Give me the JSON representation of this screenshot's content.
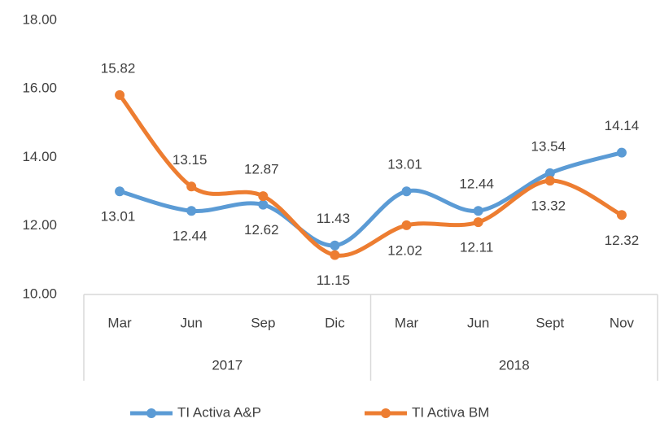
{
  "chart_data": {
    "type": "line",
    "categories": [
      "Mar",
      "Jun",
      "Sep",
      "Dic",
      "Mar",
      "Jun",
      "Sept",
      "Nov"
    ],
    "group_labels": [
      "2017",
      "2018"
    ],
    "series": [
      {
        "name": "TI Activa A&P",
        "color": "#5b9bd5",
        "values": [
          13.01,
          12.44,
          12.62,
          11.43,
          13.01,
          12.44,
          13.54,
          14.14
        ]
      },
      {
        "name": "TI Activa BM",
        "color": "#ed7d31",
        "values": [
          15.82,
          13.15,
          12.87,
          11.15,
          12.02,
          12.11,
          13.32,
          12.32
        ]
      }
    ],
    "ylim": [
      10,
      18
    ],
    "yticks": [
      {
        "value": 10,
        "label": "10.00"
      },
      {
        "value": 12,
        "label": "12.00"
      },
      {
        "value": 14,
        "label": "14.00"
      },
      {
        "value": 16,
        "label": "16.00"
      },
      {
        "value": 18,
        "label": "18.00"
      }
    ],
    "grid": false,
    "legend": "bottom"
  }
}
